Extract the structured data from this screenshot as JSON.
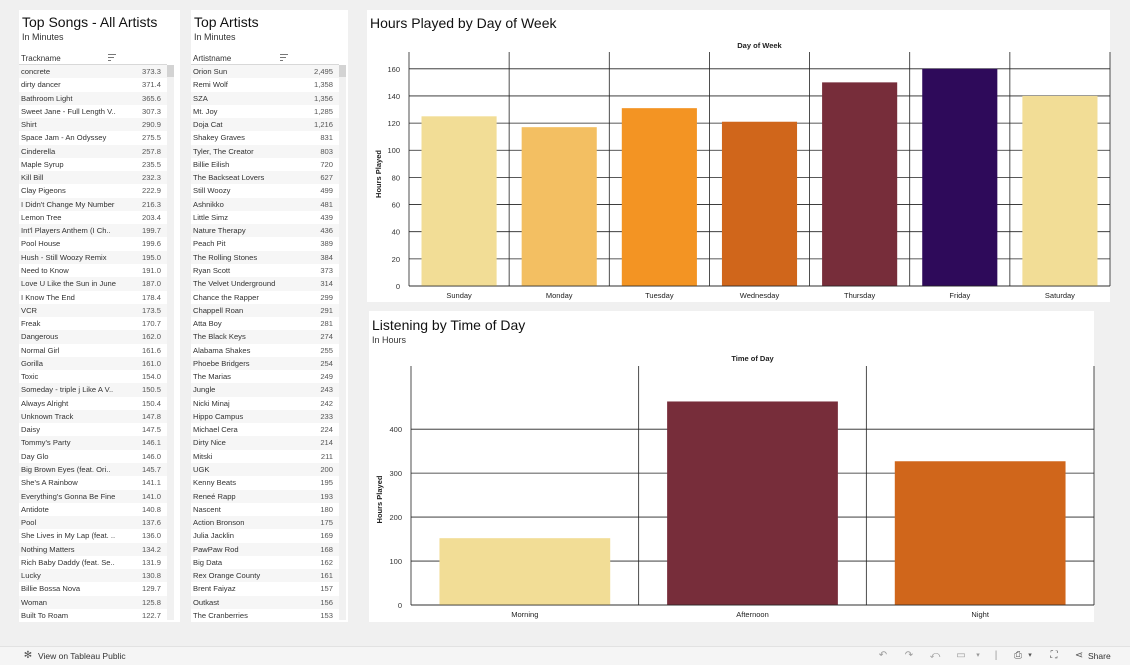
{
  "songs_panel": {
    "title": "Top Songs - All Artists",
    "subtitle": "In Minutes",
    "column_header": "Trackname",
    "rows": [
      {
        "name": "concrete",
        "value": "373.3"
      },
      {
        "name": "dirty dancer",
        "value": "371.4"
      },
      {
        "name": "Bathroom Light",
        "value": "365.6"
      },
      {
        "name": "Sweet Jane - Full Length V..",
        "value": "307.3"
      },
      {
        "name": "Shirt",
        "value": "290.9"
      },
      {
        "name": "Space Jam - An Odyssey",
        "value": "275.5"
      },
      {
        "name": "Cinderella",
        "value": "257.8"
      },
      {
        "name": "Maple Syrup",
        "value": "235.5"
      },
      {
        "name": "Kill Bill",
        "value": "232.3"
      },
      {
        "name": "Clay Pigeons",
        "value": "222.9"
      },
      {
        "name": "I Didn't Change My Number",
        "value": "216.3"
      },
      {
        "name": "Lemon Tree",
        "value": "203.4"
      },
      {
        "name": "Int'l Players Anthem (I Ch..",
        "value": "199.7"
      },
      {
        "name": "Pool House",
        "value": "199.6"
      },
      {
        "name": "Hush - Still Woozy Remix",
        "value": "195.0"
      },
      {
        "name": "Need to Know",
        "value": "191.0"
      },
      {
        "name": "Love U Like the Sun in June",
        "value": "187.0"
      },
      {
        "name": "I Know The End",
        "value": "178.4"
      },
      {
        "name": "VCR",
        "value": "173.5"
      },
      {
        "name": "Freak",
        "value": "170.7"
      },
      {
        "name": "Dangerous",
        "value": "162.0"
      },
      {
        "name": "Normal Girl",
        "value": "161.6"
      },
      {
        "name": "Gorilla",
        "value": "161.0"
      },
      {
        "name": "Toxic",
        "value": "154.0"
      },
      {
        "name": "Someday - triple j Like A V..",
        "value": "150.5"
      },
      {
        "name": "Always Alright",
        "value": "150.4"
      },
      {
        "name": "Unknown Track",
        "value": "147.8"
      },
      {
        "name": "Daisy",
        "value": "147.5"
      },
      {
        "name": "Tommy's Party",
        "value": "146.1"
      },
      {
        "name": "Day Glo",
        "value": "146.0"
      },
      {
        "name": "Big Brown Eyes (feat. Ori..",
        "value": "145.7"
      },
      {
        "name": "She's A Rainbow",
        "value": "141.1"
      },
      {
        "name": "Everything's Gonna Be Fine",
        "value": "141.0"
      },
      {
        "name": "Antidote",
        "value": "140.8"
      },
      {
        "name": "Pool",
        "value": "137.6"
      },
      {
        "name": "She Lives in My Lap (feat. ..",
        "value": "136.0"
      },
      {
        "name": "Nothing Matters",
        "value": "134.2"
      },
      {
        "name": "Rich Baby Daddy (feat. Se..",
        "value": "131.9"
      },
      {
        "name": "Lucky",
        "value": "130.8"
      },
      {
        "name": "Billie Bossa Nova",
        "value": "129.7"
      },
      {
        "name": "Woman",
        "value": "125.8"
      },
      {
        "name": "Built To Roam",
        "value": "122.7"
      }
    ]
  },
  "artists_panel": {
    "title": "Top Artists",
    "subtitle": "In Minutes",
    "column_header": "Artistname",
    "rows": [
      {
        "name": "Orion Sun",
        "value": "2,495"
      },
      {
        "name": "Remi Wolf",
        "value": "1,358"
      },
      {
        "name": "SZA",
        "value": "1,356"
      },
      {
        "name": "Mt. Joy",
        "value": "1,285"
      },
      {
        "name": "Doja Cat",
        "value": "1,216"
      },
      {
        "name": "Shakey Graves",
        "value": "831"
      },
      {
        "name": "Tyler, The Creator",
        "value": "803"
      },
      {
        "name": "Billie Eilish",
        "value": "720"
      },
      {
        "name": "The Backseat Lovers",
        "value": "627"
      },
      {
        "name": "Still Woozy",
        "value": "499"
      },
      {
        "name": "Ashnikko",
        "value": "481"
      },
      {
        "name": "Little Simz",
        "value": "439"
      },
      {
        "name": "Nature Therapy",
        "value": "436"
      },
      {
        "name": "Peach Pit",
        "value": "389"
      },
      {
        "name": "The Rolling Stones",
        "value": "384"
      },
      {
        "name": "Ryan Scott",
        "value": "373"
      },
      {
        "name": "The Velvet Underground",
        "value": "314"
      },
      {
        "name": "Chance the Rapper",
        "value": "299"
      },
      {
        "name": "Chappell Roan",
        "value": "291"
      },
      {
        "name": "Atta Boy",
        "value": "281"
      },
      {
        "name": "The Black Keys",
        "value": "274"
      },
      {
        "name": "Alabama Shakes",
        "value": "255"
      },
      {
        "name": "Phoebe Bridgers",
        "value": "254"
      },
      {
        "name": "The Marias",
        "value": "249"
      },
      {
        "name": "Jungle",
        "value": "243"
      },
      {
        "name": "Nicki Minaj",
        "value": "242"
      },
      {
        "name": "Hippo Campus",
        "value": "233"
      },
      {
        "name": "Michael Cera",
        "value": "224"
      },
      {
        "name": "Dirty Nice",
        "value": "214"
      },
      {
        "name": "Mitski",
        "value": "211"
      },
      {
        "name": "UGK",
        "value": "200"
      },
      {
        "name": "Kenny Beats",
        "value": "195"
      },
      {
        "name": "Reneé Rapp",
        "value": "193"
      },
      {
        "name": "Nascent",
        "value": "180"
      },
      {
        "name": "Action Bronson",
        "value": "175"
      },
      {
        "name": "Julia Jacklin",
        "value": "169"
      },
      {
        "name": "PawPaw Rod",
        "value": "168"
      },
      {
        "name": "Big Data",
        "value": "162"
      },
      {
        "name": "Rex Orange County",
        "value": "161"
      },
      {
        "name": "Brent Faiyaz",
        "value": "157"
      },
      {
        "name": "Outkast",
        "value": "156"
      },
      {
        "name": "The Cranberries",
        "value": "153"
      }
    ]
  },
  "day_panel": {
    "title": "Hours Played by Day of Week"
  },
  "time_panel": {
    "title": "Listening by Time of Day",
    "subtitle": "In Hours"
  },
  "chart_data": [
    {
      "type": "bar",
      "title": "Hours Played by Day of Week",
      "header": "Day of Week",
      "ylabel": "Hours Played",
      "categories": [
        "Sunday",
        "Monday",
        "Tuesday",
        "Wednesday",
        "Thursday",
        "Friday",
        "Saturday"
      ],
      "values": [
        125,
        117,
        131,
        121,
        150,
        160,
        140
      ],
      "colors": [
        "#f2dd96",
        "#f3bf62",
        "#f39423",
        "#d0661b",
        "#772d3a",
        "#2e0a5a",
        "#f2dd96"
      ],
      "ylim": [
        0,
        165
      ],
      "yticks": [
        0,
        20,
        40,
        60,
        80,
        100,
        120,
        140,
        160
      ],
      "grid": true
    },
    {
      "type": "bar",
      "title": "Listening by Time of Day",
      "subtitle": "In Hours",
      "header": "Time of Day",
      "ylabel": "Hours Played",
      "categories": [
        "Morning",
        "Afternoon",
        "Night"
      ],
      "values": [
        152,
        463,
        327
      ],
      "colors": [
        "#f2dd96",
        "#772d3a",
        "#d0661b"
      ],
      "ylim": [
        0,
        480
      ],
      "yticks": [
        0,
        100,
        200,
        300,
        400
      ],
      "grid": true
    }
  ],
  "bottom_bar": {
    "view_label": "View on Tableau Public",
    "share_label": "Share"
  }
}
